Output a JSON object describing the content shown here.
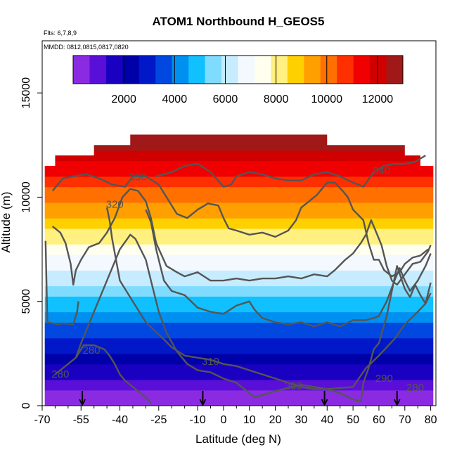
{
  "chart_data": {
    "type": "heatmap",
    "title": "ATOM1 Northbound H_GEOS5",
    "notes": [
      "Flts: 6,7,8,9",
      "MMDD: 0812,0815,0817,0820"
    ],
    "xlabel": "Latitude (deg N)",
    "ylabel": "Altitude (m)",
    "xlim": [
      -70,
      82
    ],
    "ylim": [
      0,
      17500
    ],
    "xticks": [
      -70,
      -55,
      -40,
      -25,
      -10,
      0,
      10,
      20,
      30,
      40,
      50,
      60,
      70,
      80
    ],
    "xticks_minor": [
      -65,
      -60,
      -50,
      -45,
      -35,
      -30,
      -20,
      -15,
      -5,
      5,
      15,
      25,
      35,
      45,
      55,
      65,
      75
    ],
    "yticks": [
      0,
      5000,
      10000,
      15000
    ],
    "colorbar": {
      "min": 0,
      "max": 13000,
      "ticks": [
        2000,
        4000,
        6000,
        8000,
        10000,
        12000
      ],
      "colors": [
        "#8a2be2",
        "#5a0fd8",
        "#1a00c0",
        "#0000a8",
        "#0018c8",
        "#0048e0",
        "#0090f0",
        "#10c0ff",
        "#80dcff",
        "#c8ecff",
        "#f4f8ff",
        "#fffff0",
        "#fff080",
        "#ffd000",
        "#ffa000",
        "#ff7000",
        "#ff3000",
        "#f00000",
        "#d00000",
        "#a01818"
      ]
    },
    "field_extent": {
      "x": [
        -69,
        81
      ],
      "y": [
        0,
        13000
      ]
    },
    "flight_markers_lat": [
      -54.5,
      -8,
      39,
      67
    ],
    "contours": [
      {
        "label": "280",
        "points": [
          [
            -68.7,
            7900
          ],
          [
            -68,
            4000
          ],
          [
            -64,
            3900
          ],
          [
            -62,
            3950
          ],
          [
            -58,
            3900
          ],
          [
            -56.5,
            4500
          ],
          [
            -56,
            5000
          ]
        ]
      },
      {
        "label": "280",
        "points": [
          [
            -65,
            1500
          ],
          [
            -60,
            2000
          ],
          [
            -57,
            2300
          ],
          [
            -54,
            2900
          ],
          [
            -50,
            2900
          ],
          [
            -46,
            2700
          ],
          [
            -44,
            2400
          ],
          [
            -42,
            2000
          ],
          [
            -40,
            1500
          ],
          [
            -38,
            1200
          ],
          [
            -34,
            800
          ],
          [
            -30,
            400
          ],
          [
            -28,
            100
          ]
        ]
      },
      {
        "label": "290",
        "points": [
          [
            -57,
            2300
          ],
          [
            -55,
            3000
          ],
          [
            -50,
            4500
          ],
          [
            -45,
            6000
          ],
          [
            -40,
            7500
          ],
          [
            -36,
            8200
          ],
          [
            -34,
            8000
          ],
          [
            -30,
            7000
          ],
          [
            -28,
            6000
          ],
          [
            -25,
            4500
          ],
          [
            -22,
            3500
          ],
          [
            -18,
            2600
          ],
          [
            -14,
            2000
          ],
          [
            -10,
            1700
          ],
          [
            -5,
            1600
          ],
          [
            0,
            1300
          ],
          [
            5,
            1100
          ],
          [
            10,
            600
          ],
          [
            12,
            400
          ],
          [
            20,
            700
          ],
          [
            30,
            1000
          ],
          [
            40,
            800
          ],
          [
            50,
            900
          ],
          [
            55,
            1800
          ],
          [
            60,
            2400
          ],
          [
            66,
            3200
          ],
          [
            70,
            3900
          ],
          [
            75,
            4500
          ],
          [
            78,
            4900
          ],
          [
            80,
            5400
          ]
        ]
      },
      {
        "label": "300",
        "points": [
          [
            -45,
            9500
          ],
          [
            -44,
            8900
          ],
          [
            -43,
            8000
          ],
          [
            -40,
            6000
          ],
          [
            -35,
            5000
          ],
          [
            -30,
            4000
          ],
          [
            -24,
            3300
          ],
          [
            -20,
            2800
          ],
          [
            -15,
            2400
          ],
          [
            -10,
            2300
          ],
          [
            -5,
            2200
          ],
          [
            0,
            2000
          ],
          [
            5,
            1900
          ],
          [
            10,
            1700
          ],
          [
            15,
            1500
          ],
          [
            20,
            1300
          ],
          [
            25,
            1100
          ],
          [
            30,
            900
          ],
          [
            35,
            800
          ],
          [
            40,
            800
          ],
          [
            45,
            600
          ],
          [
            50,
            300
          ],
          [
            53,
            200
          ],
          [
            54,
            1100
          ],
          [
            56,
            1800
          ],
          [
            58,
            2700
          ],
          [
            60,
            3000
          ],
          [
            63,
            4300
          ],
          [
            67,
            6700
          ],
          [
            70,
            5600
          ],
          [
            72,
            5200
          ],
          [
            74,
            5800
          ],
          [
            76,
            5300
          ],
          [
            78,
            4900
          ],
          [
            80,
            5900
          ]
        ]
      },
      {
        "label": "310",
        "points": [
          [
            -30,
            9400
          ],
          [
            -28,
            8800
          ],
          [
            -26,
            7500
          ],
          [
            -23,
            6000
          ],
          [
            -20,
            5500
          ],
          [
            -15,
            5300
          ],
          [
            -10,
            4700
          ],
          [
            -5,
            4500
          ],
          [
            0,
            4400
          ],
          [
            5,
            4800
          ],
          [
            10,
            5000
          ],
          [
            12,
            4600
          ],
          [
            15,
            4200
          ],
          [
            20,
            4000
          ],
          [
            25,
            3900
          ],
          [
            30,
            4000
          ],
          [
            35,
            3800
          ],
          [
            40,
            4000
          ],
          [
            45,
            3800
          ],
          [
            50,
            4100
          ],
          [
            55,
            4100
          ],
          [
            58,
            4200
          ],
          [
            60,
            4300
          ],
          [
            63,
            5000
          ],
          [
            66,
            6000
          ],
          [
            68,
            6600
          ],
          [
            70,
            6000
          ],
          [
            72,
            5500
          ],
          [
            75,
            6000
          ],
          [
            78,
            6700
          ],
          [
            80,
            7300
          ]
        ]
      },
      {
        "label": "320",
        "points": [
          [
            -66,
            8600
          ],
          [
            -63,
            8300
          ],
          [
            -61,
            7800
          ],
          [
            -59,
            6800
          ],
          [
            -58,
            5800
          ],
          [
            -57,
            6500
          ],
          [
            -55,
            7000
          ],
          [
            -52,
            7600
          ],
          [
            -48,
            7800
          ],
          [
            -45,
            8300
          ],
          [
            -42,
            9000
          ],
          [
            -39,
            10000
          ],
          [
            -36,
            10400
          ],
          [
            -33,
            10300
          ],
          [
            -30,
            9800
          ],
          [
            -28,
            9000
          ],
          [
            -26,
            7800
          ],
          [
            -22,
            6700
          ],
          [
            -18,
            6400
          ],
          [
            -15,
            6200
          ],
          [
            -10,
            6400
          ],
          [
            -5,
            6000
          ],
          [
            0,
            6000
          ],
          [
            5,
            6100
          ],
          [
            10,
            6000
          ],
          [
            15,
            6100
          ],
          [
            20,
            6100
          ],
          [
            25,
            6200
          ],
          [
            30,
            6100
          ],
          [
            35,
            6300
          ],
          [
            40,
            6200
          ],
          [
            43,
            6500
          ],
          [
            47,
            7000
          ],
          [
            50,
            7300
          ],
          [
            53,
            7800
          ],
          [
            55,
            8200
          ],
          [
            57,
            8900
          ],
          [
            59,
            8300
          ],
          [
            61,
            7700
          ],
          [
            63,
            6700
          ],
          [
            65,
            6000
          ],
          [
            67,
            5800
          ],
          [
            70,
            6300
          ],
          [
            73,
            6800
          ],
          [
            76,
            6900
          ],
          [
            79,
            7400
          ],
          [
            80,
            7700
          ]
        ]
      },
      {
        "label": "330",
        "points": [
          [
            -66,
            10300
          ],
          [
            -62,
            10900
          ],
          [
            -58,
            11000
          ],
          [
            -53,
            11100
          ],
          [
            -48,
            10900
          ],
          [
            -43,
            10600
          ],
          [
            -38,
            10500
          ],
          [
            -35,
            11000
          ],
          [
            -30,
            11000
          ],
          [
            -25,
            10600
          ],
          [
            -22,
            10000
          ],
          [
            -20,
            9600
          ],
          [
            -18,
            9200
          ],
          [
            -14,
            9000
          ],
          [
            -10,
            9400
          ],
          [
            -6,
            9700
          ],
          [
            -2,
            9600
          ],
          [
            0,
            9000
          ],
          [
            2,
            8500
          ],
          [
            5,
            8400
          ],
          [
            10,
            8200
          ],
          [
            15,
            8300
          ],
          [
            20,
            8100
          ],
          [
            25,
            8400
          ],
          [
            28,
            8900
          ],
          [
            30,
            9500
          ],
          [
            33,
            9800
          ],
          [
            36,
            10100
          ],
          [
            40,
            10700
          ],
          [
            43,
            10700
          ],
          [
            46,
            10300
          ],
          [
            48,
            10000
          ],
          [
            50,
            9400
          ],
          [
            54,
            8900
          ],
          [
            56,
            7800
          ],
          [
            58,
            7000
          ],
          [
            60,
            7000
          ],
          [
            62,
            6500
          ],
          [
            65,
            6200
          ],
          [
            68,
            6400
          ],
          [
            70,
            6800
          ],
          [
            73,
            7100
          ],
          [
            76,
            7200
          ],
          [
            79,
            7500
          ]
        ]
      },
      {
        "label": "340",
        "points": [
          [
            -26,
            11000
          ],
          [
            -20,
            11200
          ],
          [
            -15,
            11500
          ],
          [
            -10,
            11600
          ],
          [
            -5,
            11200
          ],
          [
            0,
            10500
          ],
          [
            3,
            10600
          ],
          [
            5,
            11000
          ],
          [
            10,
            11200
          ],
          [
            15,
            11100
          ],
          [
            20,
            10900
          ],
          [
            25,
            10800
          ],
          [
            30,
            10800
          ],
          [
            35,
            11100
          ],
          [
            40,
            11200
          ],
          [
            45,
            11000
          ],
          [
            50,
            10700
          ],
          [
            54,
            10500
          ],
          [
            58,
            11200
          ],
          [
            62,
            11500
          ],
          [
            66,
            11600
          ],
          [
            70,
            11600
          ],
          [
            74,
            11700
          ],
          [
            78,
            12000
          ]
        ]
      }
    ],
    "contour_labels": [
      {
        "text": "280",
        "x": -63,
        "y": 1350
      },
      {
        "text": "280",
        "x": -51,
        "y": 2500
      },
      {
        "text": "290",
        "x": 62,
        "y": 1150
      },
      {
        "text": "300",
        "x": 27,
        "y": 800
      },
      {
        "text": "310",
        "x": -5,
        "y": 1950
      },
      {
        "text": "320",
        "x": -42,
        "y": 9500
      },
      {
        "text": "330",
        "x": -33,
        "y": 10800
      },
      {
        "text": "340",
        "x": 61,
        "y": 11100
      },
      {
        "text": "280",
        "x": 74,
        "y": 700
      }
    ]
  }
}
